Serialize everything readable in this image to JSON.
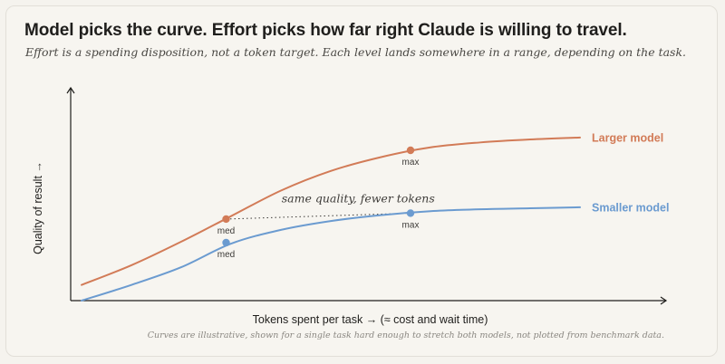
{
  "header": {
    "title": "Model picks the curve. Effort picks how far right Claude is willing to travel.",
    "subtitle": "Effort is a spending disposition, not a token target. Each level lands somewhere in a range, depending on the task.",
    "footnote": "Curves are illustrative, shown for a single task hard enough to stretch both models, not plotted from benchmark data."
  },
  "chart_data": {
    "type": "line",
    "title": "Model picks the curve. Effort picks how far right Claude is willing to travel.",
    "xlabel": "Tokens spent per task → (≈ cost and wait time)",
    "ylabel": "Quality of result →",
    "xlim": [
      0,
      100
    ],
    "ylim": [
      0,
      100
    ],
    "grid": false,
    "legend": "inline labels at right end of each curve",
    "series": [
      {
        "name": "Larger model",
        "color": "#d27b57",
        "x": [
          0,
          10,
          20,
          30,
          40,
          50,
          60,
          70,
          80,
          90,
          100
        ],
        "y": [
          8,
          18,
          30,
          43,
          56,
          66,
          73,
          78,
          80.5,
          82,
          83
        ],
        "markers": [
          {
            "x": 29,
            "y": 41.5,
            "label": "med"
          },
          {
            "x": 66,
            "y": 76.5,
            "label": "max"
          }
        ]
      },
      {
        "name": "Smaller model",
        "color": "#6b9bd0",
        "x": [
          0,
          10,
          20,
          30,
          40,
          50,
          60,
          70,
          80,
          90,
          100
        ],
        "y": [
          0,
          8,
          17,
          29,
          36,
          40.5,
          43.5,
          45.5,
          46.5,
          47,
          47.5
        ],
        "markers": [
          {
            "x": 29,
            "y": 29.5,
            "label": "med"
          },
          {
            "x": 66,
            "y": 44.5,
            "label": "max"
          }
        ]
      }
    ],
    "annotations": [
      {
        "text": "same quality, fewer tokens",
        "from": {
          "x": 29,
          "y": 41.5
        },
        "to": {
          "x": 66,
          "y": 44.5
        }
      }
    ]
  }
}
